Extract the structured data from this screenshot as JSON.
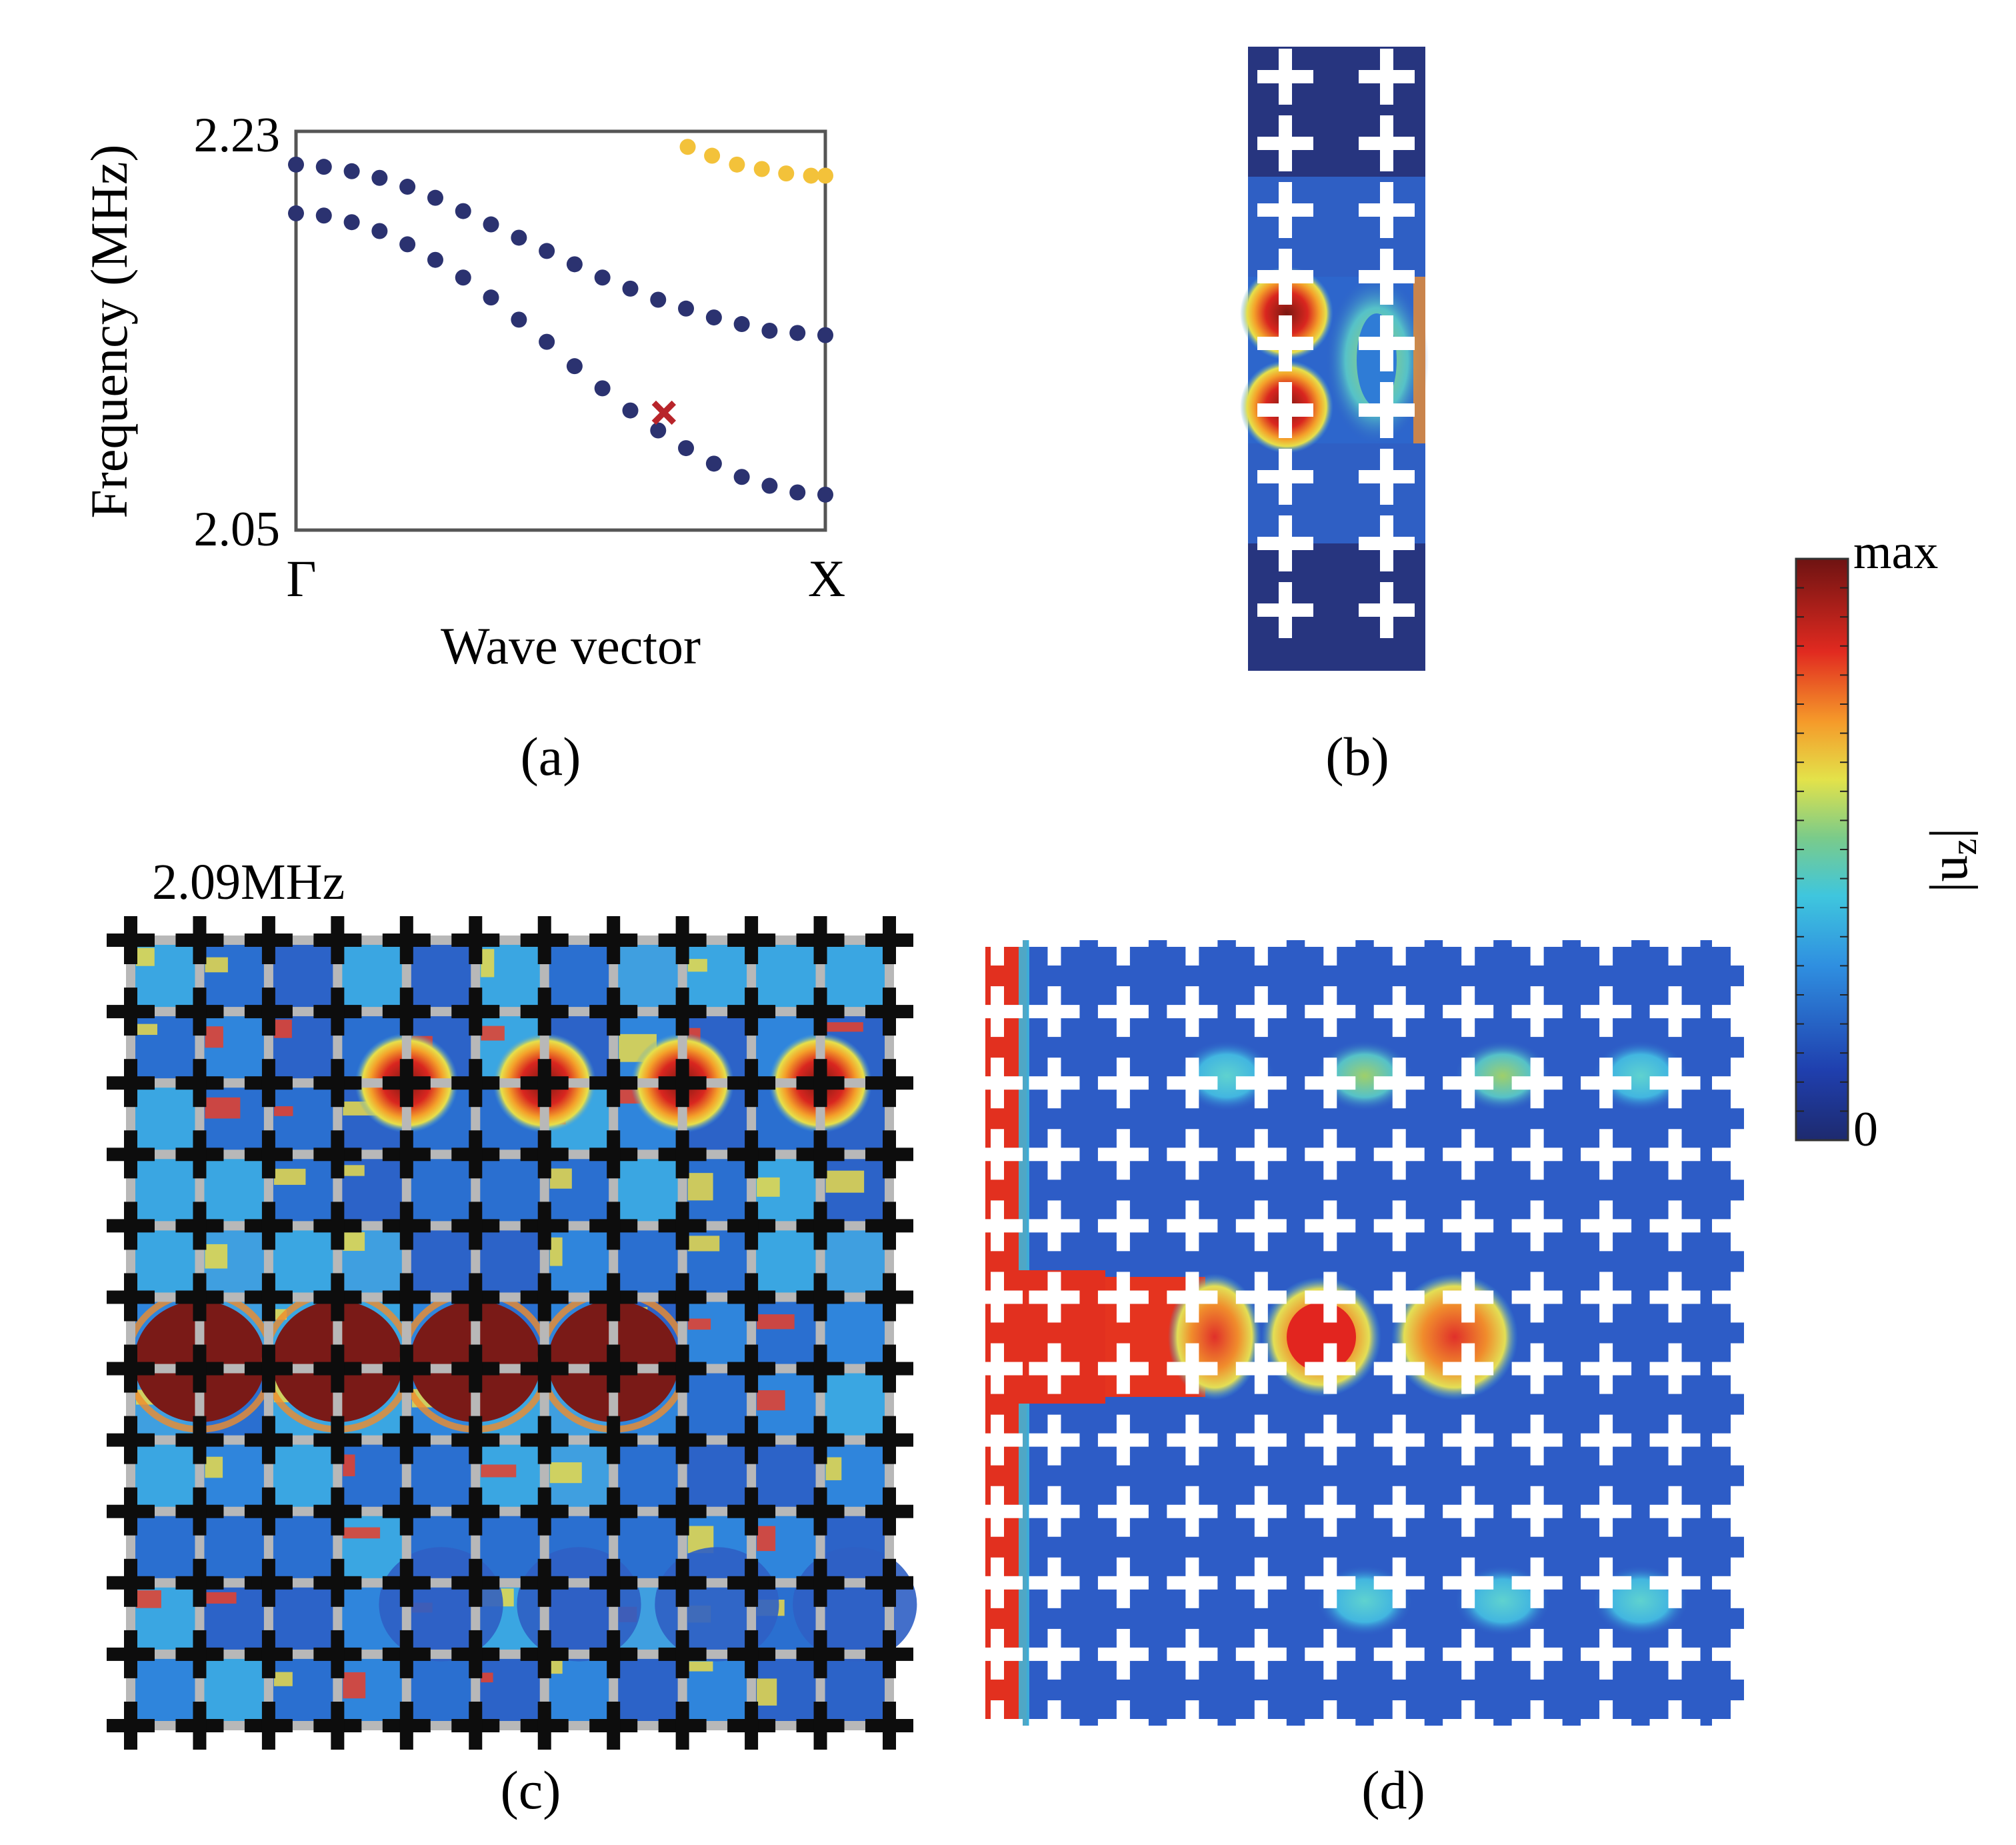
{
  "chart_data": [
    {
      "type": "scatter",
      "panel": "(a)",
      "xlabel": "Wave vector",
      "ylabel": "Frequency (MHz)",
      "x_ticks": [
        "Γ",
        "X"
      ],
      "y_ticks": [
        "2.23",
        "2.05"
      ],
      "ylim": [
        2.05,
        2.23
      ],
      "xlim": [
        0,
        1
      ],
      "grid": false,
      "series": [
        {
          "color": "#2b3270",
          "x": [
            0,
            0.0526,
            0.1053,
            0.1579,
            0.2105,
            0.2632,
            0.3158,
            0.3684,
            0.4211,
            0.4737,
            0.5263,
            0.5789,
            0.6316,
            0.6842,
            0.7368,
            0.7895,
            0.8421,
            0.8947,
            0.9474,
            1
          ],
          "y": [
            2.215,
            2.214,
            2.212,
            2.209,
            2.205,
            2.2,
            2.194,
            2.188,
            2.182,
            2.176,
            2.17,
            2.164,
            2.159,
            2.154,
            2.15,
            2.146,
            2.143,
            2.14,
            2.139,
            2.138
          ]
        },
        {
          "color": "#2b3270",
          "x": [
            0,
            0.0526,
            0.1053,
            0.1579,
            0.2105,
            0.2632,
            0.3158,
            0.3684,
            0.4211,
            0.4737,
            0.5263,
            0.5789,
            0.6316,
            0.6842,
            0.7368,
            0.7895,
            0.8421,
            0.8947,
            0.9474,
            1
          ],
          "y": [
            2.193,
            2.192,
            2.189,
            2.185,
            2.179,
            2.172,
            2.164,
            2.155,
            2.145,
            2.135,
            2.124,
            2.114,
            2.104,
            2.095,
            2.087,
            2.08,
            2.074,
            2.07,
            2.067,
            2.066
          ]
        },
        {
          "color": "#f3c23a",
          "x": [
            0.74,
            0.786,
            0.833,
            0.88,
            0.926,
            0.973,
            1
          ],
          "y": [
            2.223,
            2.219,
            2.215,
            2.213,
            2.211,
            2.21,
            2.21
          ]
        }
      ],
      "marker": {
        "x": 0.695,
        "y": 2.103,
        "color": "#b8242a",
        "symbol": "x"
      }
    },
    {
      "type": "heatmap",
      "panel": "(b)",
      "colormap": "jet"
    },
    {
      "type": "heatmap",
      "panel": "(c)",
      "title": "2.09MHz",
      "colormap": "jet"
    },
    {
      "type": "heatmap",
      "panel": "(d)",
      "colormap": "jet"
    }
  ],
  "colorbar": {
    "label": "|u_z|",
    "label_main": "|u",
    "label_sub": "z",
    "max_label": "max",
    "min_label": "0"
  },
  "panel_labels": {
    "a": "(a)",
    "b": "(b)",
    "c": "(c)",
    "d": "(d)"
  },
  "colors": {
    "deep_blue": "#2a3a8f",
    "field_blue": "#2d5cc6",
    "dark_red": "#7a1a17",
    "red": "#e52a20",
    "axis": "#555555"
  }
}
